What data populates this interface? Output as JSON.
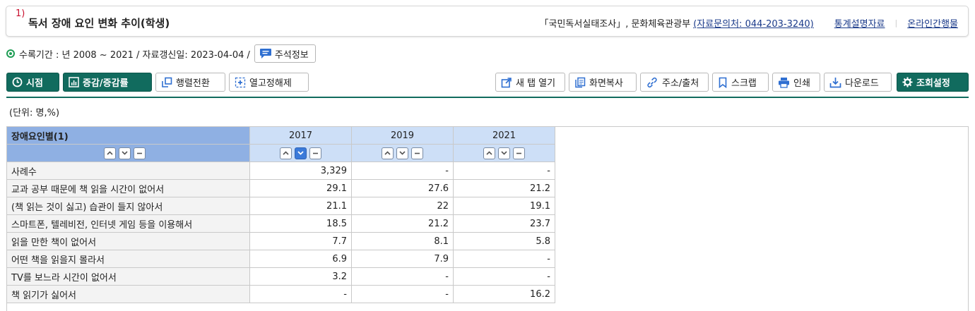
{
  "title": {
    "sup": "1)",
    "text": "독서 장애 요인 변화 추이(학생)"
  },
  "source": {
    "survey": "「국민독서실태조사」, 문화체육관광부",
    "contact": "(자료문의처: 044-203-3240)",
    "stats_info": "통계설명자료",
    "online": "온라인간행물"
  },
  "period": {
    "text": "수록기간 : 년 2008 ~ 2021 / 자료갱신일: 2023-04-04 /",
    "note_button": "주석정보"
  },
  "toolbar": {
    "left": [
      "시점",
      "증감/증감률",
      "행렬전환",
      "열고정해제"
    ],
    "right": [
      "새 탭 열기",
      "화면복사",
      "주소/출처",
      "스크랩",
      "인쇄",
      "다운로드",
      "조회설정"
    ]
  },
  "unit": "(단위: 명,%)",
  "table": {
    "stub_header": "장애요인별(1)",
    "columns": [
      "2017",
      "2019",
      "2021"
    ],
    "rows": [
      {
        "label": "사례수",
        "values": [
          "3,329",
          "-",
          "-"
        ]
      },
      {
        "label": "교과 공부 때문에 책 읽을 시간이 없어서",
        "values": [
          "29.1",
          "27.6",
          "21.2"
        ]
      },
      {
        "label": "(책 읽는 것이 싫고) 습관이 들지 않아서",
        "values": [
          "21.1",
          "22",
          "19.1"
        ]
      },
      {
        "label": "스마트폰, 텔레비전, 인터넷 게임 등을 이용해서",
        "values": [
          "18.5",
          "21.2",
          "23.7"
        ]
      },
      {
        "label": "읽을 만한 책이 없어서",
        "values": [
          "7.7",
          "8.1",
          "5.8"
        ]
      },
      {
        "label": "어떤 책을 읽을지 몰라서",
        "values": [
          "6.9",
          "7.9",
          "-"
        ]
      },
      {
        "label": "TV를 보느라 시간이 없어서",
        "values": [
          "3.2",
          "-",
          "-"
        ]
      },
      {
        "label": "책 읽기가 싫어서",
        "values": [
          "-",
          "-",
          "16.2"
        ]
      }
    ]
  },
  "colors": {
    "accent": "#116b5e",
    "stub_header": "#8fb0e3",
    "col_header": "#cddff7",
    "title_number": "#c8102e"
  }
}
